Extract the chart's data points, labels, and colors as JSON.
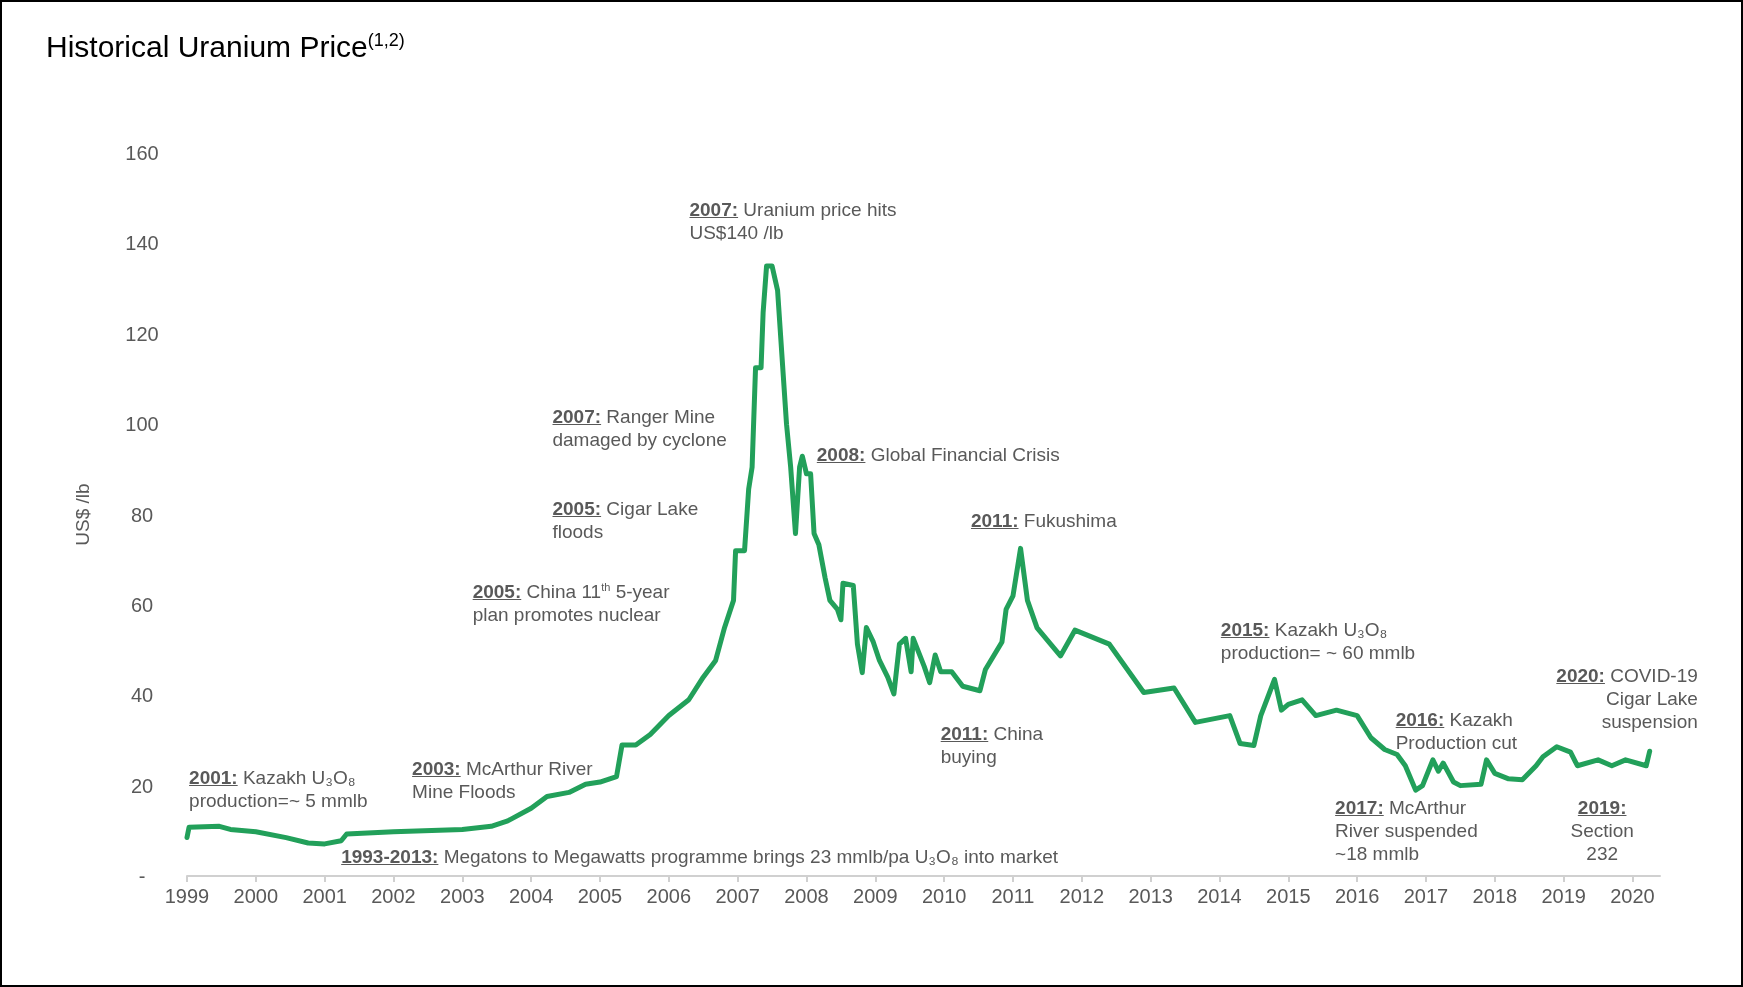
{
  "chart_data": {
    "type": "line",
    "title": "Historical Uranium Price$^{(1,2)}$",
    "ylabel": "US$ /lb",
    "xlim": [
      1999,
      2020.4
    ],
    "xticks": [
      1999,
      2000,
      2001,
      2002,
      2003,
      2004,
      2005,
      2006,
      2007,
      2008,
      2009,
      2010,
      2011,
      2012,
      2013,
      2014,
      2015,
      2016,
      2017,
      2018,
      2019,
      2020
    ],
    "ylim": [
      0,
      160
    ],
    "yticks": [
      {
        "value": 0,
        "label": "-"
      },
      20,
      40,
      60,
      80,
      100,
      120,
      140,
      160
    ],
    "grid": false,
    "marker": "none",
    "line_style": "solid",
    "series": [
      {
        "color": "#22a05a",
        "x": [
          1999.0,
          1999.03,
          1999.47,
          1999.63,
          2000.0,
          2000.44,
          2000.76,
          2001.0,
          2001.24,
          2001.32,
          2002.0,
          2003.0,
          2003.42,
          2003.66,
          2004.0,
          2004.23,
          2004.55,
          2004.79,
          2005.0,
          2005.24,
          2005.32,
          2005.52,
          2005.73,
          2006.0,
          2006.29,
          2006.5,
          2006.68,
          2006.81,
          2006.94,
          2006.97,
          2007.1,
          2007.16,
          2007.21,
          2007.26,
          2007.34,
          2007.37,
          2007.42,
          2007.5,
          2007.58,
          2007.71,
          2007.77,
          2007.84,
          2007.9,
          2007.94,
          2008.0,
          2008.06,
          2008.11,
          2008.18,
          2008.27,
          2008.34,
          2008.45,
          2008.5,
          2008.53,
          2008.68,
          2008.74,
          2008.81,
          2008.87,
          2008.97,
          2009.06,
          2009.18,
          2009.27,
          2009.35,
          2009.44,
          2009.52,
          2009.55,
          2009.71,
          2009.79,
          2009.87,
          2009.95,
          2010.11,
          2010.27,
          2010.52,
          2010.6,
          2010.84,
          2010.9,
          2011.0,
          2011.11,
          2011.21,
          2011.35,
          2011.69,
          2011.9,
          2012.4,
          2012.9,
          2013.34,
          2013.65,
          2014.15,
          2014.3,
          2014.5,
          2014.6,
          2014.8,
          2014.9,
          2015.0,
          2015.2,
          2015.4,
          2015.7,
          2016.0,
          2016.2,
          2016.4,
          2016.58,
          2016.7,
          2016.85,
          2016.95,
          2017.1,
          2017.18,
          2017.25,
          2017.4,
          2017.5,
          2017.8,
          2017.88,
          2018.0,
          2018.2,
          2018.4,
          2018.6,
          2018.7,
          2018.9,
          2019.1,
          2019.2,
          2019.5,
          2019.7,
          2019.9,
          2020.2,
          2020.25
        ],
        "values": [
          8.5,
          10.8,
          11,
          10.3,
          9.8,
          8.5,
          7.3,
          7.1,
          7.8,
          9.3,
          9.8,
          10.3,
          11,
          12.2,
          15,
          17.6,
          18.5,
          20.3,
          20.8,
          22,
          29,
          29,
          31.3,
          35.5,
          39,
          44,
          47.7,
          55,
          61,
          72,
          72,
          85.6,
          90.5,
          112.5,
          112.5,
          124.7,
          135,
          135,
          129.6,
          100,
          90.5,
          75.8,
          90.5,
          92.9,
          89,
          89,
          75.8,
          73.3,
          66,
          61,
          59,
          56.7,
          64.8,
          64.3,
          51.3,
          45,
          55,
          51.8,
          47.7,
          44,
          40.3,
          51.3,
          52.6,
          45.2,
          52.6,
          46.4,
          42.8,
          48.9,
          45.2,
          45.2,
          42,
          41,
          45.7,
          51.8,
          59,
          62,
          72.5,
          61,
          54.9,
          48.7,
          54.4,
          51.3,
          40.6,
          41.6,
          34,
          35.5,
          29.3,
          28.9,
          35.5,
          43.5,
          36.7,
          38,
          39,
          35.5,
          36.7,
          35.5,
          30.6,
          28,
          26.9,
          24.4,
          19,
          20,
          25.7,
          23.2,
          25,
          20.8,
          20,
          20.3,
          25.7,
          22.7,
          21.5,
          21.3,
          24.4,
          26.4,
          28.6,
          27.4,
          24.4,
          25.7,
          24.4,
          25.7,
          24.4,
          27.6
        ]
      }
    ],
    "annotations": [
      "2007: Uranium price hits US$140 /lb",
      "2007: Ranger Mine damaged by cyclone",
      "2005: Cigar Lake floods",
      "2005: China 11$^{th}$ 5-year plan promotes nuclear",
      "2008: Global Financial Crisis",
      "2011: Fukushima",
      "2001: Kazakh U₃O₈ production=~ 5 mmlb",
      "2003: McArthur River Mine Floods",
      "1993-2013: Megatons to Megawatts programme brings 23 mmlb/pa U₃O₈ into market",
      "2011: China buying",
      "2015: Kazakh U₃O₈ production= ~ 60 mmlb",
      "2016: Kazakh Production cut",
      "2017: McArthur River suspended ~18 mmlb",
      "2020: COVID-19 Cigar Lake suspension",
      "2019: Section 232"
    ]
  }
}
